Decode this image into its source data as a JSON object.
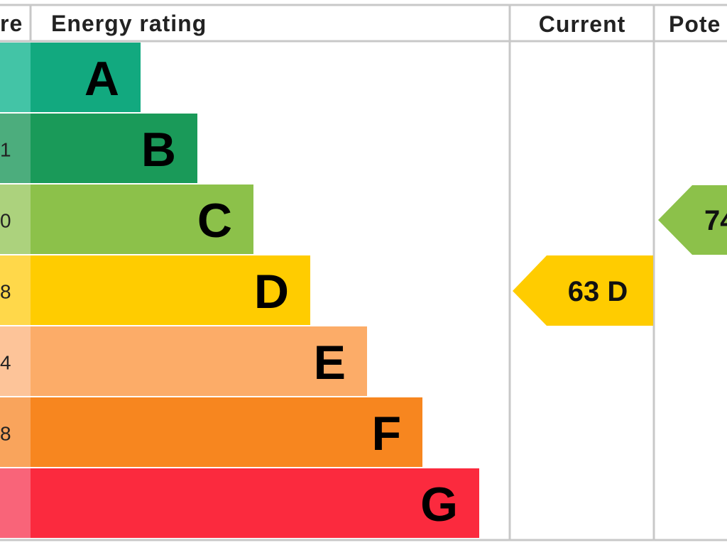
{
  "header": {
    "score": "re",
    "rating": "Energy rating",
    "current": "Current",
    "potential": "Pote"
  },
  "rows": [
    {
      "score": null,
      "letter": "A",
      "color": "#12a97f",
      "score_color": "#43c4a6"
    },
    {
      "score": "1",
      "letter": "B",
      "color": "#1a9a59",
      "score_color": "#4cad7d"
    },
    {
      "score": "0",
      "letter": "C",
      "color": "#8cc14a",
      "score_color": "#acd27d"
    },
    {
      "score": "8",
      "letter": "D",
      "color": "#ffcc00",
      "score_color": "#ffd84a"
    },
    {
      "score": "4",
      "letter": "E",
      "color": "#fcac68",
      "score_color": "#fdc499"
    },
    {
      "score": "8",
      "letter": "F",
      "color": "#f7861f",
      "score_color": "#f9a45c"
    },
    {
      "score": null,
      "letter": "G",
      "color": "#fb2a3e",
      "score_color": "#f96479"
    }
  ],
  "current": {
    "label": "63 D",
    "color": "#ffcc00"
  },
  "potential": {
    "label": "74",
    "color": "#8cc14a"
  }
}
